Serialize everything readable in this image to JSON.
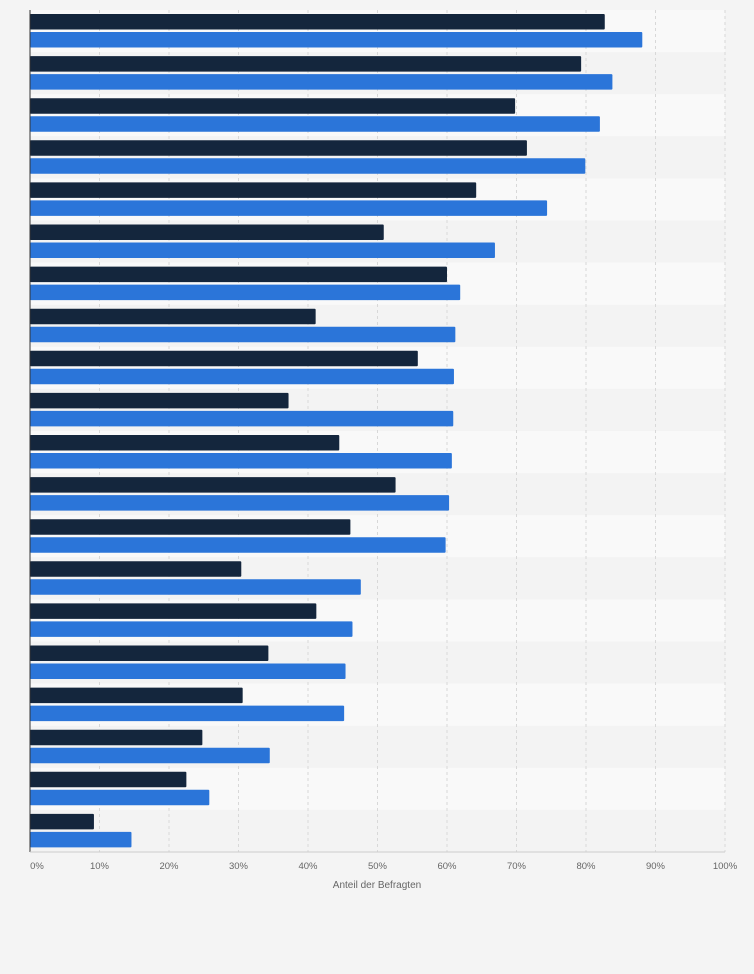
{
  "chart_data": {
    "type": "bar",
    "orientation": "horizontal",
    "xlabel": "Anteil der Befragten",
    "xlim": [
      0,
      100
    ],
    "tick_values": [
      0,
      10,
      20,
      30,
      40,
      50,
      60,
      70,
      80,
      90,
      100
    ],
    "tick_labels": [
      "0%",
      "10%",
      "20%",
      "30%",
      "40%",
      "50%",
      "60%",
      "70%",
      "80%",
      "90%",
      "100%"
    ],
    "grid": true,
    "legend": "none",
    "colors": {
      "series_1": "#14263d",
      "series_2": "#2b75d9",
      "band": "#f6f6f6",
      "grid": "#d8d8d8",
      "axis": "#333333",
      "text": "#666666"
    },
    "series": [
      {
        "values": [
          82.7,
          79.3,
          69.8,
          71.5,
          64.2,
          50.9,
          60.0,
          41.1,
          55.8,
          37.2,
          44.5,
          52.6,
          46.1,
          30.4,
          41.2,
          34.3,
          30.6,
          24.8,
          22.5,
          9.2
        ]
      },
      {
        "values": [
          88.1,
          83.8,
          82.0,
          79.9,
          74.4,
          66.9,
          61.9,
          61.2,
          61.0,
          60.9,
          60.7,
          60.3,
          59.8,
          47.6,
          46.4,
          45.4,
          45.2,
          34.5,
          25.8,
          14.6
        ]
      }
    ]
  }
}
